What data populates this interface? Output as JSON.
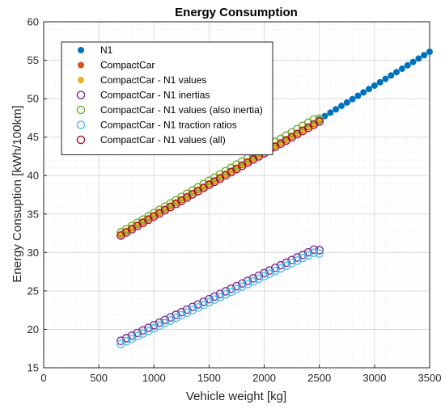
{
  "chart_data": {
    "type": "scatter",
    "title": "Energy Consumption",
    "xlabel": "Vehicle weight [kg]",
    "ylabel": "Energy Consuption [kWh/100km]",
    "xlim": [
      0,
      3500
    ],
    "ylim": [
      15,
      60
    ],
    "xticks": [
      0,
      500,
      1000,
      1500,
      2000,
      2500,
      3000,
      3500
    ],
    "yticks": [
      15,
      20,
      25,
      30,
      35,
      40,
      45,
      50,
      55,
      60
    ],
    "grid": true,
    "minor_grid": true,
    "legend_position": "top-left",
    "series": [
      {
        "name": "N1",
        "marker": "filled-circle",
        "color": "#0072BD",
        "x": [
          2500,
          2550,
          2600,
          2650,
          2700,
          2750,
          2800,
          2850,
          2900,
          2950,
          3000,
          3050,
          3100,
          3150,
          3200,
          3250,
          3300,
          3350,
          3400,
          3450,
          3500
        ],
        "y": [
          47.3,
          47.74,
          48.18,
          48.62,
          49.06,
          49.5,
          49.94,
          50.38,
          50.82,
          51.26,
          51.7,
          52.14,
          52.58,
          53.02,
          53.46,
          53.9,
          54.34,
          54.78,
          55.22,
          55.66,
          56.1
        ]
      },
      {
        "name": "CompactCar",
        "marker": "filled-circle",
        "color": "#D95319",
        "x": [
          700,
          750,
          800,
          850,
          900,
          950,
          1000,
          1050,
          1100,
          1150,
          1200,
          1250,
          1300,
          1350,
          1400,
          1450,
          1500,
          1550,
          1600,
          1650,
          1700,
          1750,
          1800,
          1850,
          1900,
          1950,
          2000,
          2050,
          2100,
          2150,
          2200,
          2250,
          2300,
          2350,
          2400,
          2450,
          2500
        ],
        "y": [
          32.3,
          32.71,
          33.12,
          33.54,
          33.95,
          34.36,
          34.77,
          35.18,
          35.6,
          36.01,
          36.42,
          36.83,
          37.24,
          37.66,
          38.07,
          38.48,
          38.89,
          39.3,
          39.72,
          40.13,
          40.54,
          40.95,
          41.36,
          41.78,
          42.19,
          42.6,
          43.01,
          43.42,
          43.84,
          44.25,
          44.66,
          45.07,
          45.48,
          45.9,
          46.31,
          46.72,
          47.13
        ]
      },
      {
        "name": "CompactCar - N1 values",
        "marker": "filled-circle",
        "color": "#EDB120",
        "x": [
          700,
          750,
          800,
          850,
          900,
          950,
          1000,
          1050,
          1100,
          1150,
          1200,
          1250,
          1300,
          1350,
          1400,
          1450,
          1500,
          1550,
          1600,
          1650,
          1700,
          1750,
          1800,
          1850,
          1900,
          1950,
          2000,
          2050,
          2100,
          2150,
          2200,
          2250,
          2300,
          2350,
          2400,
          2450,
          2500
        ],
        "y": [
          32.4,
          32.81,
          33.22,
          33.64,
          34.05,
          34.46,
          34.87,
          35.28,
          35.7,
          36.11,
          36.52,
          36.93,
          37.34,
          37.76,
          38.17,
          38.58,
          38.99,
          39.4,
          39.82,
          40.23,
          40.64,
          41.05,
          41.46,
          41.88,
          42.29,
          42.7,
          43.11,
          43.52,
          43.94,
          44.35,
          44.76,
          45.17,
          45.58,
          46.0,
          46.41,
          46.82,
          47.23
        ]
      },
      {
        "name": "CompactCar - N1 inertias",
        "marker": "open-circle",
        "color": "#7E2F8E",
        "x": [
          700,
          750,
          800,
          850,
          900,
          950,
          1000,
          1050,
          1100,
          1150,
          1200,
          1250,
          1300,
          1350,
          1400,
          1450,
          1500,
          1550,
          1600,
          1650,
          1700,
          1750,
          1800,
          1850,
          1900,
          1950,
          2000,
          2050,
          2100,
          2150,
          2200,
          2250,
          2300,
          2350,
          2400,
          2450,
          2500
        ],
        "y": [
          18.5,
          18.84,
          19.18,
          19.52,
          19.86,
          20.19,
          20.53,
          20.87,
          21.21,
          21.55,
          21.89,
          22.23,
          22.57,
          22.91,
          23.24,
          23.58,
          23.92,
          24.26,
          24.6,
          24.94,
          25.28,
          25.62,
          25.96,
          26.29,
          26.63,
          26.97,
          27.31,
          27.65,
          27.99,
          28.33,
          28.67,
          29.01,
          29.34,
          29.68,
          30.02,
          30.36,
          30.3
        ]
      },
      {
        "name": "CompactCar - N1 values (also inertia)",
        "marker": "open-circle",
        "color": "#77AC30",
        "x": [
          700,
          750,
          800,
          850,
          900,
          950,
          1000,
          1050,
          1100,
          1150,
          1200,
          1250,
          1300,
          1350,
          1400,
          1450,
          1500,
          1550,
          1600,
          1650,
          1700,
          1750,
          1800,
          1850,
          1900,
          1950,
          2000,
          2050,
          2100,
          2150,
          2200,
          2250,
          2300,
          2350,
          2400,
          2450,
          2500
        ],
        "y": [
          32.6,
          33.02,
          33.44,
          33.86,
          34.28,
          34.7,
          35.12,
          35.54,
          35.96,
          36.38,
          36.8,
          37.22,
          37.64,
          38.06,
          38.48,
          38.9,
          39.32,
          39.74,
          40.16,
          40.58,
          41.0,
          41.42,
          41.84,
          42.26,
          42.68,
          43.1,
          43.52,
          43.94,
          44.36,
          44.78,
          45.2,
          45.62,
          46.04,
          46.46,
          46.88,
          47.3,
          47.4
        ]
      },
      {
        "name": "CompactCar - N1 traction ratios",
        "marker": "open-circle",
        "color": "#4DBEEE",
        "x": [
          700,
          750,
          800,
          850,
          900,
          950,
          1000,
          1050,
          1100,
          1150,
          1200,
          1250,
          1300,
          1350,
          1400,
          1450,
          1500,
          1550,
          1600,
          1650,
          1700,
          1750,
          1800,
          1850,
          1900,
          1950,
          2000,
          2050,
          2100,
          2150,
          2200,
          2250,
          2300,
          2350,
          2400,
          2450,
          2500
        ],
        "y": [
          18.1,
          18.44,
          18.78,
          19.12,
          19.46,
          19.79,
          20.13,
          20.47,
          20.81,
          21.15,
          21.49,
          21.83,
          22.17,
          22.51,
          22.84,
          23.18,
          23.52,
          23.86,
          24.2,
          24.54,
          24.88,
          25.22,
          25.56,
          25.89,
          26.23,
          26.57,
          26.91,
          27.25,
          27.59,
          27.93,
          28.27,
          28.61,
          28.94,
          29.28,
          29.62,
          29.96,
          29.85
        ]
      },
      {
        "name": "CompactCar - N1 values (all)",
        "marker": "open-circle",
        "color": "#A2142F",
        "x": [
          700,
          750,
          800,
          850,
          900,
          950,
          1000,
          1050,
          1100,
          1150,
          1200,
          1250,
          1300,
          1350,
          1400,
          1450,
          1500,
          1550,
          1600,
          1650,
          1700,
          1750,
          1800,
          1850,
          1900,
          1950,
          2000,
          2050,
          2100,
          2150,
          2200,
          2250,
          2300,
          2350,
          2400,
          2450,
          2500
        ],
        "y": [
          32.2,
          32.61,
          33.02,
          33.44,
          33.85,
          34.26,
          34.67,
          35.08,
          35.5,
          35.91,
          36.32,
          36.73,
          37.14,
          37.56,
          37.97,
          38.38,
          38.79,
          39.2,
          39.62,
          40.03,
          40.44,
          40.85,
          41.26,
          41.68,
          42.09,
          42.5,
          42.91,
          43.32,
          43.74,
          44.15,
          44.56,
          44.97,
          45.38,
          45.8,
          46.21,
          46.62,
          47.03
        ]
      }
    ]
  }
}
